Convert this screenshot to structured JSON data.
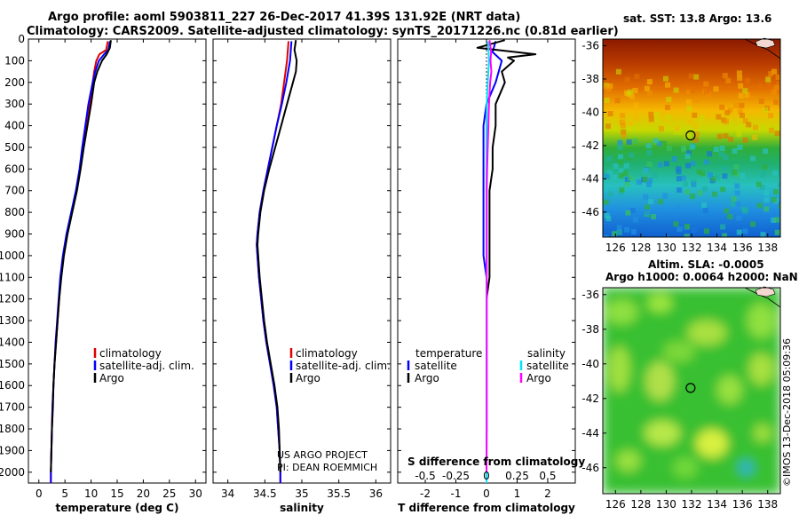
{
  "header": {
    "line1": "Argo profile: aoml 5903811_227 26-Dec-2017 41.39S 131.92E (NRT data)",
    "line2": "Climatology: CARS2009. Satellite-adjusted climatology: synTS_20171226.nc (0.81d earlier)"
  },
  "colors": {
    "climatology": "#e00000",
    "satellite": "#0000ff",
    "argo": "#000000",
    "sal_satellite": "#00e5ff",
    "sal_argo": "#ff00ff"
  },
  "chart_data": [
    {
      "type": "line",
      "name": "temperature",
      "xlabel": "temperature (deg C)",
      "ylabel": "",
      "xlim": [
        -2,
        32
      ],
      "ylim": [
        2050,
        0
      ],
      "xticks": [
        0,
        5,
        10,
        15,
        20,
        25,
        30
      ],
      "yticks": [
        0,
        100,
        200,
        300,
        400,
        500,
        600,
        700,
        800,
        900,
        1000,
        1100,
        1200,
        1300,
        1400,
        1500,
        1600,
        1700,
        1800,
        1900,
        2000
      ],
      "legend": [
        "climatology",
        "satellite-adj. clim.",
        "Argo"
      ],
      "series": [
        {
          "name": "climatology",
          "color": "#e00000",
          "depth": [
            10,
            50,
            70,
            100,
            150,
            200,
            300,
            400,
            500,
            600,
            700,
            800,
            900,
            1000,
            1100,
            1200,
            1300,
            1400,
            1500,
            1600,
            1700,
            1800,
            1900,
            2000,
            2050
          ],
          "values": [
            13.2,
            12.9,
            11.6,
            11.0,
            10.6,
            10.3,
            9.7,
            9.0,
            8.4,
            7.9,
            7.2,
            6.3,
            5.4,
            4.7,
            4.2,
            3.9,
            3.6,
            3.3,
            3.0,
            2.8,
            2.6,
            2.5,
            2.4,
            2.3,
            2.3
          ]
        },
        {
          "name": "satellite-adj. clim.",
          "color": "#0000ff",
          "depth": [
            10,
            50,
            70,
            100,
            150,
            200,
            300,
            400,
            500,
            600,
            700,
            800,
            900,
            1000,
            1100,
            1200,
            1300,
            1400,
            1500,
            1600,
            1700,
            1800,
            1900,
            2000,
            2050
          ],
          "values": [
            13.6,
            13.3,
            12.5,
            11.5,
            10.8,
            10.3,
            9.5,
            8.9,
            8.3,
            7.8,
            7.1,
            6.2,
            5.3,
            4.6,
            4.1,
            3.8,
            3.5,
            3.2,
            3.0,
            2.8,
            2.6,
            2.5,
            2.4,
            2.3,
            2.3
          ]
        },
        {
          "name": "Argo",
          "color": "#000000",
          "depth": [
            5,
            40,
            70,
            100,
            150,
            200,
            300,
            400,
            500,
            600,
            700,
            800,
            900,
            1000,
            1100,
            1200,
            1300,
            1400,
            1500,
            1600,
            1700,
            1800,
            1900,
            2000
          ],
          "values": [
            13.8,
            13.6,
            13.0,
            12.1,
            11.2,
            10.6,
            10.0,
            9.3,
            8.6,
            8.0,
            7.3,
            6.4,
            5.5,
            4.8,
            4.3,
            3.9,
            3.6,
            3.3,
            3.0,
            2.8,
            2.7,
            2.5,
            2.4,
            2.3
          ]
        }
      ]
    },
    {
      "type": "line",
      "name": "salinity",
      "xlabel": "salinity",
      "xlim": [
        33.8,
        36.2
      ],
      "ylim": [
        2050,
        0
      ],
      "xticks": [
        34,
        34.5,
        35,
        35.5,
        36
      ],
      "legend": [
        "climatology",
        "satellite-adj. clim.",
        "Argo"
      ],
      "series": [
        {
          "name": "climatology",
          "color": "#e00000",
          "depth": [
            10,
            100,
            200,
            300,
            400,
            500,
            600,
            700,
            800,
            900,
            950,
            1000,
            1100,
            1200,
            1300,
            1400,
            1500,
            1600,
            1700,
            1800,
            1900,
            2000,
            2050
          ],
          "values": [
            34.82,
            34.8,
            34.76,
            34.72,
            34.66,
            34.6,
            34.54,
            34.48,
            34.43,
            34.4,
            34.39,
            34.4,
            34.42,
            34.45,
            34.48,
            34.52,
            34.57,
            34.62,
            34.66,
            34.68,
            34.7,
            34.71,
            34.71
          ]
        },
        {
          "name": "satellite-adj. clim.",
          "color": "#0000ff",
          "depth": [
            10,
            100,
            200,
            300,
            400,
            500,
            600,
            700,
            800,
            900,
            950,
            1000,
            1100,
            1200,
            1300,
            1400,
            1500,
            1600,
            1700,
            1800,
            1900,
            2000,
            2050
          ],
          "values": [
            34.86,
            34.84,
            34.79,
            34.73,
            34.66,
            34.6,
            34.54,
            34.48,
            34.43,
            34.4,
            34.39,
            34.4,
            34.42,
            34.45,
            34.48,
            34.52,
            34.57,
            34.62,
            34.66,
            34.68,
            34.7,
            34.71,
            34.71
          ]
        },
        {
          "name": "Argo",
          "color": "#000000",
          "depth": [
            5,
            50,
            100,
            150,
            200,
            300,
            400,
            500,
            600,
            700,
            800,
            900,
            950,
            1000,
            1100,
            1200,
            1300,
            1400,
            1500,
            1600,
            1700,
            1800,
            1900,
            2000
          ],
          "values": [
            34.92,
            34.9,
            34.93,
            34.92,
            34.88,
            34.8,
            34.72,
            34.64,
            34.56,
            34.49,
            34.44,
            34.41,
            34.4,
            34.41,
            34.43,
            34.46,
            34.49,
            34.53,
            34.58,
            34.63,
            34.67,
            34.69,
            34.7,
            34.71
          ]
        }
      ],
      "annotation": [
        "US ARGO PROJECT",
        "PI: DEAN ROEMMICH"
      ]
    },
    {
      "type": "line",
      "name": "difference",
      "xlabel": "T difference from climatology",
      "top_axis_label": "S difference from climatology",
      "xlim": [
        -2.9,
        2.9
      ],
      "ylim": [
        2050,
        0
      ],
      "xticks": [
        -2,
        -1,
        0,
        1,
        2
      ],
      "xtick_labels": [
        "-2",
        "-1",
        "0",
        "1",
        "2"
      ],
      "sticks": [
        -0.5,
        -0.25,
        0,
        0.25,
        0.5
      ],
      "stick_labels": [
        "-0.5",
        "-0.25",
        "0",
        "0.25",
        "0.5"
      ],
      "legend_left_title": "temperature",
      "legend_left": [
        "satellite",
        "Argo"
      ],
      "legend_right_title": "salinity",
      "legend_right": [
        "satellite",
        "Argo"
      ],
      "series": [
        {
          "name": "T satellite",
          "color": "#0000ff",
          "depth": [
            10,
            60,
            100,
            200,
            300,
            400,
            500,
            600,
            700,
            800,
            900,
            1000,
            1100,
            1200,
            1300,
            1500,
            1700,
            1900,
            2050
          ],
          "values": [
            0.3,
            0.2,
            0.5,
            0.3,
            0.0,
            -0.1,
            -0.1,
            -0.1,
            -0.1,
            -0.1,
            -0.1,
            -0.1,
            0.0,
            0.0,
            0.0,
            0.0,
            0.0,
            0.0,
            0.0
          ]
        },
        {
          "name": "T Argo",
          "color": "#000000",
          "depth": [
            5,
            40,
            70,
            85,
            100,
            150,
            200,
            300,
            400,
            500,
            600,
            700,
            800,
            900,
            1000,
            1100,
            1200,
            1400,
            1600,
            1800,
            2000
          ],
          "values": [
            0.6,
            -0.3,
            1.6,
            0.7,
            0.9,
            0.5,
            0.6,
            0.3,
            0.3,
            0.2,
            0.2,
            0.1,
            0.1,
            0.1,
            0.1,
            0.1,
            0.0,
            0.0,
            0.0,
            0.0,
            0.0
          ]
        },
        {
          "name": "S satellite",
          "color": "#00e5ff",
          "depth": [
            10,
            100,
            200,
            300,
            400,
            500,
            600,
            700,
            800,
            900,
            1000,
            1200,
            1500,
            1800,
            2050
          ],
          "values": [
            0.05,
            0.08,
            0.04,
            0.01,
            0.0,
            0.0,
            0.0,
            0.0,
            0.0,
            0.0,
            0.0,
            0.0,
            0.0,
            0.0,
            0.0
          ]
        },
        {
          "name": "S Argo",
          "color": "#ff00ff",
          "depth": [
            5,
            60,
            100,
            150,
            200,
            300,
            400,
            500,
            600,
            700,
            800,
            900,
            1000,
            1200,
            1500,
            1800,
            2000
          ],
          "values": [
            0.1,
            0.15,
            0.13,
            0.16,
            0.12,
            0.08,
            0.06,
            0.04,
            0.02,
            0.01,
            0.01,
            0.01,
            0.01,
            0.01,
            0.01,
            0.01,
            0.0
          ]
        }
      ]
    },
    {
      "type": "heatmap",
      "name": "sst_map",
      "title": "sat. SST: 13.8 Argo: 13.6",
      "xticks": [
        126,
        128,
        130,
        132,
        134,
        136,
        138
      ],
      "yticks": [
        -36,
        -38,
        -40,
        -42,
        -44,
        -46
      ],
      "xlim": [
        125,
        139
      ],
      "ylim": [
        -47.5,
        -35.6
      ],
      "argo_position": [
        131.92,
        -41.39
      ]
    },
    {
      "type": "heatmap",
      "name": "sla_map",
      "title1": "Altim. SLA: -0.0005",
      "title2": "Argo h1000: 0.0064 h2000: NaN",
      "xticks": [
        126,
        128,
        130,
        132,
        134,
        136,
        138
      ],
      "yticks": [
        -36,
        -38,
        -40,
        -42,
        -44,
        -46
      ],
      "xlim": [
        125,
        139
      ],
      "ylim": [
        -47.5,
        -35.6
      ],
      "argo_position": [
        131.92,
        -41.39
      ]
    }
  ],
  "credit": "©IMOS 13-Dec-2018 05:09:36"
}
